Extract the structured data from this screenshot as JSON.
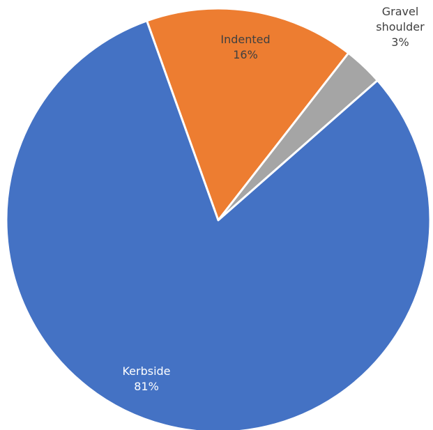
{
  "chart_data": {
    "type": "pie",
    "start_angle_deg": -19.7,
    "direction": "clockwise",
    "slices": [
      {
        "label": "Indented",
        "value_label": "16%",
        "value": 16,
        "color": "#ED7D31",
        "label_color": "#404040",
        "label_position": "inside"
      },
      {
        "label": "Gravel shoulder",
        "label_lines": [
          "Gravel",
          "shoulder"
        ],
        "value_label": "3%",
        "value": 3,
        "color": "#A5A5A5",
        "label_color": "#404040",
        "label_position": "outside"
      },
      {
        "label": "Kerbside",
        "value_label": "81%",
        "value": 81,
        "color": "#4472C4",
        "label_color": "#ffffff",
        "label_position": "inside"
      }
    ]
  }
}
